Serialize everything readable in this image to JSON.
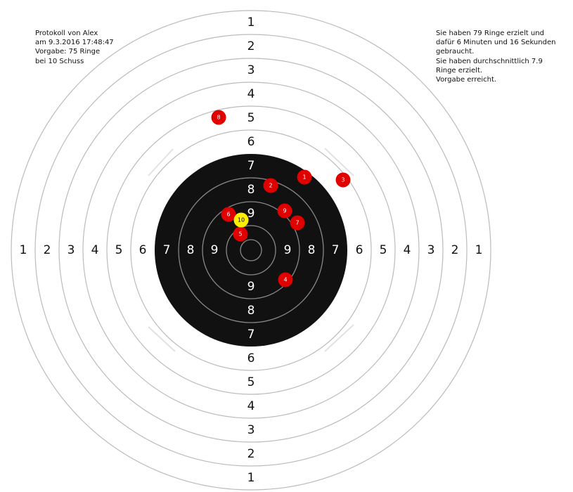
{
  "protocol": {
    "lines": [
      "Protokoll von Alex",
      "am 9.3.2016 17:48:47",
      "Vorgabe: 75 Ringe",
      "bei 10 Schuss"
    ]
  },
  "summary": {
    "lines": [
      "Sie haben 79 Ringe erzielt und",
      "dafür 6 Minuten und 16 Sekunden",
      "gebraucht.",
      "Sie haben durchschnittlich 7.9",
      "Ringe erzielt.",
      "Vorgabe erreicht."
    ]
  },
  "target": {
    "rings": [
      {
        "value": "1",
        "label_color": "#111111"
      },
      {
        "value": "2",
        "label_color": "#111111"
      },
      {
        "value": "3",
        "label_color": "#111111"
      },
      {
        "value": "4",
        "label_color": "#111111"
      },
      {
        "value": "5",
        "label_color": "#111111"
      },
      {
        "value": "6",
        "label_color": "#111111"
      },
      {
        "value": "7",
        "label_color": "#ffffff"
      },
      {
        "value": "8",
        "label_color": "#ffffff"
      },
      {
        "value": "9",
        "label_color": "#ffffff"
      }
    ],
    "colors": {
      "paper": "#ffffff",
      "black": "#111111",
      "ring_line_light": "#bbbbbb",
      "ring_line_dark": "#888888"
    }
  },
  "shots": [
    {
      "label": "1",
      "color": "#e00000",
      "text_color": "#ffffff"
    },
    {
      "label": "2",
      "color": "#e00000",
      "text_color": "#ffffff"
    },
    {
      "label": "3",
      "color": "#e00000",
      "text_color": "#ffffff"
    },
    {
      "label": "4",
      "color": "#e00000",
      "text_color": "#ffffff"
    },
    {
      "label": "5",
      "color": "#e00000",
      "text_color": "#ffffff"
    },
    {
      "label": "6",
      "color": "#e00000",
      "text_color": "#ffffff"
    },
    {
      "label": "7",
      "color": "#e00000",
      "text_color": "#ffffff"
    },
    {
      "label": "8",
      "color": "#e00000",
      "text_color": "#ffffff"
    },
    {
      "label": "9",
      "color": "#e00000",
      "text_color": "#ffffff"
    },
    {
      "label": "10",
      "color": "#ffee00",
      "text_color": "#000000"
    }
  ]
}
